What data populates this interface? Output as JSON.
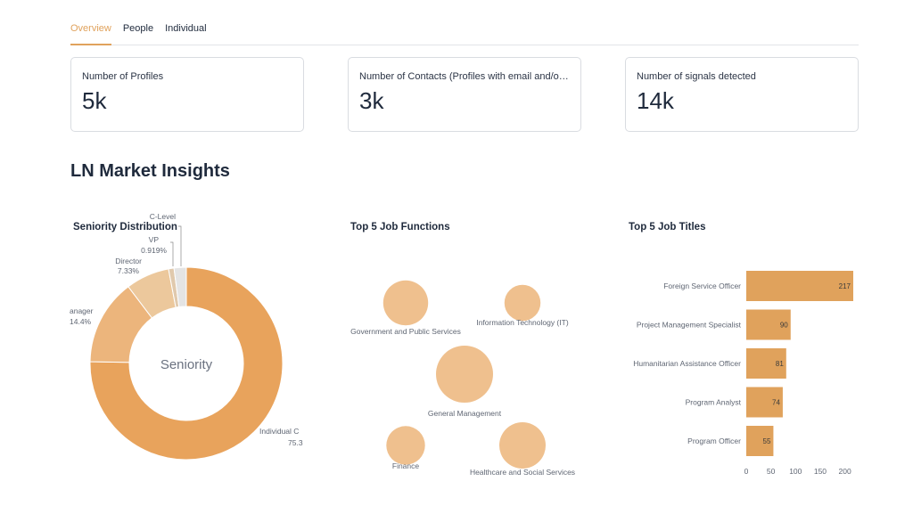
{
  "tabs": [
    {
      "label": "Overview",
      "active": true
    },
    {
      "label": "People",
      "active": false
    },
    {
      "label": "Individual",
      "active": false
    }
  ],
  "metrics": [
    {
      "label": "Number of Profiles",
      "value": "5k"
    },
    {
      "label": "Number of Contacts (Profiles with email and/or phone)",
      "value": "3k"
    },
    {
      "label": "Number of signals detected",
      "value": "14k"
    }
  ],
  "section_title": "LN Market Insights",
  "colors": {
    "accent": "#e0a25c",
    "bubble": "#efc08e"
  },
  "chart_data": [
    {
      "type": "pie",
      "title": "Seniority Distribution",
      "center_label": "Seniority",
      "slices": [
        {
          "label": "Individual Contributor",
          "display": "Individual C",
          "percent": 75.3,
          "percent_label": "75.3",
          "color": "#e8a35c"
        },
        {
          "label": "Manager",
          "display": "anager",
          "percent": 14.4,
          "percent_label": "14.4%",
          "color": "#ecb57c"
        },
        {
          "label": "Director",
          "display": "Director",
          "percent": 7.33,
          "percent_label": "7.33%",
          "color": "#ecc89c"
        },
        {
          "label": "VP",
          "display": "VP",
          "percent": 0.919,
          "percent_label": "0.919%",
          "color": "#e0c9ad"
        },
        {
          "label": "C-Level",
          "display": "C-Level",
          "percent": 2.05,
          "percent_label": "",
          "color": "#e4e4e4"
        }
      ]
    },
    {
      "type": "scatter",
      "title": "Top 5 Job Functions",
      "bubbles": [
        {
          "label": "Government and Public Services",
          "size": 0.62
        },
        {
          "label": "Information Technology (IT)",
          "size": 0.4
        },
        {
          "label": "General Management",
          "size": 1.0
        },
        {
          "label": "Finance",
          "size": 0.46
        },
        {
          "label": "Healthcare and Social Services",
          "size": 0.66
        }
      ]
    },
    {
      "type": "bar",
      "title": "Top 5 Job Titles",
      "categories": [
        "Foreign Service Officer",
        "Project Management Specialist",
        "Humanitarian Assistance Officer",
        "Program Analyst",
        "Program Officer"
      ],
      "values": [
        217,
        90,
        81,
        74,
        55
      ],
      "xticks": [
        0,
        50,
        100,
        150,
        200
      ],
      "xlim": [
        0,
        217
      ]
    }
  ]
}
